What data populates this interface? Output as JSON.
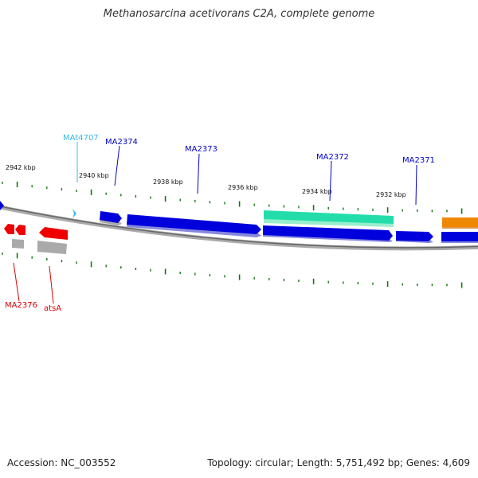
{
  "title": "Methanosarcina acetivorans C2A, complete genome",
  "footer": {
    "accession": "Accession: NC_003552",
    "summary": "Topology: circular; Length: 5,751,492 bp; Genes: 4,609"
  },
  "ruler": {
    "labels": [
      "2942 kbp",
      "2940 kbp",
      "2938 kbp",
      "2936 kbp",
      "2934 kbp",
      "2932 kbp"
    ]
  },
  "genes": {
    "forward": [
      {
        "label": "MAt4707",
        "color": "#33bbee",
        "type": "tRNA"
      },
      {
        "label": "MA2374",
        "color": "#0000cc",
        "type": "CDS"
      },
      {
        "label": "MA2373",
        "color": "#0000cc",
        "type": "CDS"
      },
      {
        "label": "MA2372",
        "color": "#22ddaa",
        "type": "CDS"
      },
      {
        "label": "MA2371",
        "color": "#0000cc",
        "type": "CDS"
      }
    ],
    "reverse": [
      {
        "label": "MA2376",
        "color": "#dd0000",
        "type": "CDS"
      },
      {
        "label": "atsA",
        "color": "#dd0000",
        "type": "CDS"
      }
    ]
  },
  "colors": {
    "cds_forward": "#0000dd",
    "cds_reverse": "#ee0000",
    "rrna": "#33ddaa",
    "other": "#ee8800",
    "tick": "#117711",
    "backbone": "#888888",
    "gene_shadow": "#aaaaaa"
  }
}
